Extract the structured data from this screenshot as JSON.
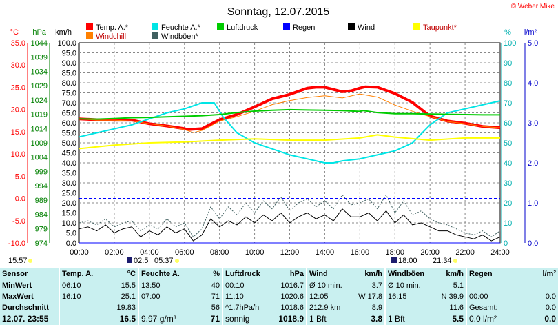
{
  "title": "Sonntag, 12.07.2015",
  "copyright": "© Weber Mike",
  "axis_units": {
    "temp": "°C",
    "pressure": "hPa",
    "wind": "km/h",
    "humidity": "%",
    "rain": "l/m²"
  },
  "legend": [
    {
      "label": "Temp. A.*",
      "color": "#ff0000"
    },
    {
      "label": "Feuchte A.*",
      "color": "#00e5e5"
    },
    {
      "label": "Luftdruck",
      "color": "#00cc00"
    },
    {
      "label": "Regen",
      "color": "#0000ff"
    },
    {
      "label": "Wind",
      "color": "#000000"
    },
    {
      "label": "Taupunkt*",
      "color": "#ffff00"
    },
    {
      "label": "Windchill",
      "color": "#ff8000"
    },
    {
      "label": "Windböen*",
      "color": "#406060"
    }
  ],
  "sun": {
    "sunrise": "05:37",
    "sunset": "21:34",
    "moonset": "02:5",
    "moonrise": "18:00",
    "left_time": "15:57"
  },
  "chart_data": {
    "type": "line",
    "x_unit": "hour",
    "xlim": [
      0,
      24
    ],
    "x_ticks": [
      "00:00",
      "02:00",
      "04:00",
      "06:00",
      "08:00",
      "10:00",
      "12:00",
      "14:00",
      "16:00",
      "18:00",
      "20:00",
      "22:00",
      "24:00"
    ],
    "axes": {
      "temp": {
        "unit": "°C",
        "ylim": [
          -10,
          35
        ],
        "ticks": [
          "35.0",
          "30.0",
          "25.0",
          "20.0",
          "15.0",
          "10.0",
          "5.0",
          "0.0",
          "-5.0",
          "-10.0"
        ]
      },
      "pressure": {
        "unit": "hPa",
        "ylim": [
          974,
          1044
        ],
        "ticks": [
          "1044",
          "1039",
          "1034",
          "1029",
          "1024",
          "1019",
          "1014",
          "1009",
          "1004",
          "999",
          "994",
          "989",
          "984",
          "979",
          "974"
        ]
      },
      "wind": {
        "unit": "km/h",
        "ylim": [
          0,
          100
        ],
        "ticks": [
          "100.0",
          "95.0",
          "90.0",
          "85.0",
          "80.0",
          "75.0",
          "70.0",
          "65.0",
          "60.0",
          "55.0",
          "50.0",
          "45.0",
          "40.0",
          "35.0",
          "30.0",
          "25.0",
          "20.0",
          "15.0",
          "10.0",
          "5.0",
          "0.0"
        ]
      },
      "humidity": {
        "unit": "%",
        "ylim": [
          0,
          100
        ],
        "ticks": [
          "100",
          "90",
          "80",
          "70",
          "60",
          "50",
          "40",
          "30",
          "20",
          "10",
          "0"
        ]
      },
      "rain": {
        "unit": "l/m²",
        "ylim": [
          0,
          5
        ],
        "ticks": [
          "5.0",
          "4.0",
          "3.0",
          "2.0",
          "1.0",
          "0.0"
        ]
      }
    },
    "series": [
      {
        "name": "Temp. A.*",
        "axis": "temp",
        "color": "#ff0000",
        "width": 4,
        "x": [
          0,
          1,
          2,
          3,
          4,
          5,
          6,
          6.2,
          7,
          7.5,
          8,
          9,
          10,
          11,
          12,
          13,
          13.5,
          14,
          15,
          15.5,
          16,
          16.3,
          17,
          18,
          19,
          20,
          21,
          22,
          23,
          24
        ],
        "y": [
          17.9,
          17.7,
          17.6,
          17.6,
          16.8,
          16.3,
          15.7,
          15.5,
          15.7,
          16.7,
          17.7,
          18.9,
          20.6,
          22.4,
          23.4,
          24.8,
          25.0,
          25.0,
          24.0,
          24.2,
          24.8,
          25.1,
          25.0,
          23.6,
          21.6,
          18.5,
          17.4,
          16.9,
          16.2,
          15.9
        ]
      },
      {
        "name": "Windchill",
        "axis": "temp",
        "color": "#ff8000",
        "width": 1,
        "x": [
          0,
          1,
          2,
          3,
          4,
          5,
          6,
          6.5,
          7,
          7.5,
          8,
          9,
          10,
          11,
          12,
          13,
          14,
          15,
          16,
          17,
          18,
          19,
          20,
          21,
          22,
          23,
          24
        ],
        "y": [
          17.9,
          17.6,
          17.6,
          17.4,
          16.8,
          16.3,
          15.5,
          14.8,
          15.3,
          16.3,
          17.4,
          18.4,
          19.6,
          21.1,
          22.0,
          22.7,
          23.1,
          22.6,
          23.5,
          22.8,
          21.0,
          19.6,
          18.4,
          17.3,
          16.8,
          16.2,
          15.9
        ]
      },
      {
        "name": "Feuchte A.*",
        "axis": "humidity",
        "color": "#00e5e5",
        "width": 2,
        "x": [
          0,
          1,
          2,
          3,
          4,
          5,
          6,
          7,
          7.7,
          8.2,
          9,
          10,
          11,
          12,
          13,
          14,
          14.5,
          15,
          16,
          17,
          18,
          19,
          20,
          21,
          22,
          23,
          24
        ],
        "y": [
          53,
          55,
          57,
          59,
          62,
          65,
          67,
          70,
          70,
          63,
          55,
          50,
          47,
          44,
          42,
          40,
          40,
          41,
          42,
          44,
          46,
          50,
          59,
          65,
          67,
          69,
          71
        ]
      },
      {
        "name": "Luftdruck",
        "axis": "pressure",
        "color": "#00cc00",
        "width": 2,
        "x": [
          0,
          1,
          2,
          3,
          4,
          5,
          6,
          7,
          8,
          9,
          10,
          11,
          12,
          13,
          14,
          15,
          16,
          16.2,
          17,
          18,
          19,
          20,
          21,
          22,
          23,
          24
        ],
        "y": [
          1017.4,
          1017.3,
          1017.5,
          1017.8,
          1017.9,
          1018.1,
          1018.3,
          1018.5,
          1018.9,
          1019.6,
          1020.1,
          1020.4,
          1020.6,
          1020.5,
          1020.4,
          1020.3,
          1020.0,
          1020.3,
          1019.6,
          1019.2,
          1019.2,
          1019.1,
          1019.0,
          1018.9,
          1018.8,
          1018.8
        ]
      },
      {
        "name": "Taupunkt*",
        "axis": "temp",
        "color": "#ffff00",
        "width": 2,
        "x": [
          0,
          2,
          4,
          6,
          8,
          10,
          12,
          14,
          16,
          17,
          18,
          20,
          22,
          24
        ],
        "y": [
          11.2,
          12.0,
          12.5,
          12.7,
          13.1,
          13.4,
          13.1,
          13.1,
          13.6,
          14.3,
          13.8,
          13.1,
          13.6,
          13.6
        ]
      },
      {
        "name": "Windböen*",
        "axis": "wind",
        "color": "#406060",
        "width": 1,
        "dash": true,
        "x": [
          0,
          0.5,
          1,
          1.5,
          2,
          2.5,
          3,
          3.5,
          4,
          4.5,
          5,
          5.5,
          6,
          6.5,
          7,
          7.5,
          8,
          8.5,
          9,
          9.5,
          10,
          10.5,
          11,
          11.5,
          12,
          12.5,
          13,
          13.5,
          14,
          14.5,
          15,
          15.5,
          16,
          16.5,
          17,
          17.5,
          18,
          18.5,
          19,
          19.5,
          20,
          20.5,
          21,
          21.5,
          22,
          22.5,
          23,
          23.5,
          24
        ],
        "y": [
          10,
          11,
          9,
          12,
          8,
          10,
          11,
          6,
          9,
          7,
          12,
          8,
          10,
          3,
          7,
          18,
          12,
          18,
          14,
          20,
          15,
          21,
          17,
          23,
          16,
          20,
          22,
          18,
          21,
          17,
          24,
          19,
          20,
          22,
          17,
          24,
          15,
          21,
          14,
          16,
          12,
          10,
          9,
          7,
          5,
          4,
          6,
          3,
          6
        ]
      },
      {
        "name": "Wind",
        "axis": "wind",
        "color": "#000000",
        "width": 1,
        "x": [
          0,
          0.5,
          1,
          1.5,
          2,
          2.5,
          3,
          3.5,
          4,
          4.5,
          5,
          5.5,
          6,
          6.5,
          7,
          7.5,
          8,
          8.5,
          9,
          9.5,
          10,
          10.5,
          11,
          11.5,
          12,
          12.5,
          13,
          13.5,
          14,
          14.5,
          15,
          15.5,
          16,
          16.5,
          17,
          17.5,
          18,
          18.5,
          19,
          19.5,
          20,
          20.5,
          21,
          21.5,
          22,
          22.5,
          23,
          23.5,
          24
        ],
        "y": [
          7,
          8,
          6,
          9,
          5,
          7,
          8,
          3,
          6,
          4,
          8,
          5,
          7,
          1,
          4,
          12,
          8,
          11,
          9,
          13,
          10,
          14,
          11,
          15,
          10,
          13,
          15,
          12,
          14,
          11,
          17,
          13,
          13,
          15,
          11,
          16,
          10,
          14,
          9,
          10,
          8,
          6,
          6,
          4,
          3,
          2,
          4,
          1,
          3
        ]
      },
      {
        "name": "Regen",
        "axis": "rain",
        "color": "#0000ff",
        "width": 1,
        "x": [
          0,
          24
        ],
        "y": [
          0,
          0
        ]
      }
    ],
    "reference_line": {
      "axis": "temp",
      "value": 0.0,
      "color": "#0000ff",
      "dash": true
    }
  },
  "stats": {
    "header": [
      "Sensor",
      "Temp. A.",
      "°C",
      "Feuchte A.",
      "%",
      "Luftdruck",
      "hPa",
      "Wind",
      "km/h",
      "Windböen",
      "km/h",
      "Regen",
      "l/m²"
    ],
    "rows": [
      [
        "MinWert",
        "06:10",
        "15.5",
        "13:50",
        "40",
        "00:10",
        "1016.7",
        "Ø 10 min.",
        "3.7",
        "Ø 10 min.",
        "5.1",
        "",
        ""
      ],
      [
        "MaxWert",
        "16:10",
        "25.1",
        "07:00",
        "71",
        "11:10",
        "1020.6",
        "12:05",
        "W 17.8",
        "16:15",
        "N 39.9",
        "00:00",
        "0.0"
      ],
      [
        "Durchschnitt",
        "",
        "19.83",
        "",
        "56",
        "^1.7hPa/h",
        "1018.6",
        "212.9 km",
        "8.9",
        "",
        "11.6",
        "Gesamt:",
        "0.0"
      ],
      [
        "12.07. 23:55",
        "",
        "16.5",
        "9.97 g/m³",
        "71",
        "sonnig",
        "1018.9",
        "1 Bft",
        "3.8",
        "1 Bft",
        "5.5",
        "0.0 l/m²",
        "0.0"
      ]
    ]
  }
}
